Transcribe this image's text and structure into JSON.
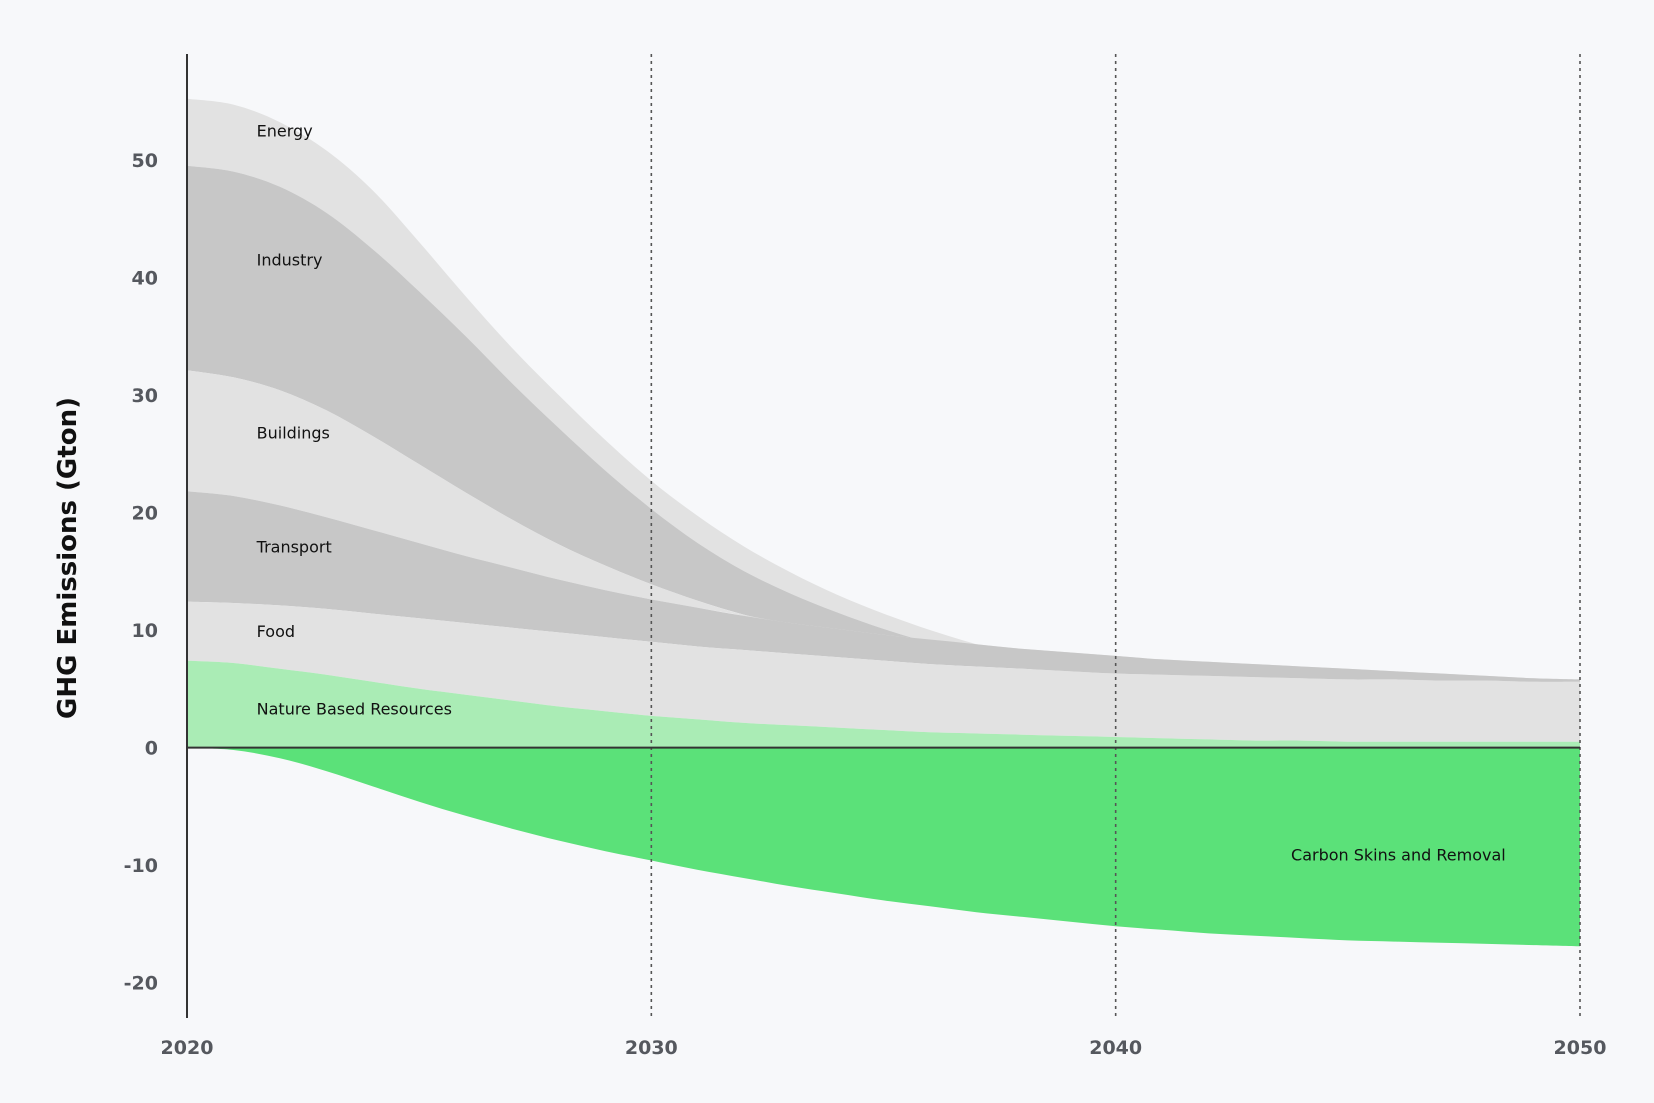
{
  "chart_data": {
    "type": "area",
    "ylabel": "GHG Emissions (Gton)",
    "xlabel": "",
    "title": "",
    "x_ticks": [
      2020,
      2030,
      2040,
      2050
    ],
    "y_ticks": [
      -20,
      -10,
      0,
      10,
      20,
      30,
      40,
      50
    ],
    "xlim": [
      2020,
      2050
    ],
    "ylim": [
      -23,
      59
    ],
    "grid": "vertical dotted lines at 2030, 2040, 2050",
    "x": [
      2020,
      2021,
      2022,
      2023,
      2024,
      2025,
      2026,
      2027,
      2028,
      2029,
      2030,
      2031,
      2032,
      2033,
      2034,
      2035,
      2036,
      2037,
      2038,
      2039,
      2040,
      2041,
      2042,
      2043,
      2044,
      2045,
      2046,
      2047,
      2048,
      2049,
      2050
    ],
    "series": [
      {
        "name": "Energy",
        "color": "#e2e2e2",
        "bounds": [
          [
            49.5,
            55.2
          ],
          [
            49.0,
            54.7
          ],
          [
            47.7,
            53.2
          ],
          [
            45.5,
            50.8
          ],
          [
            42.4,
            47.4
          ],
          [
            38.8,
            43.0
          ],
          [
            35.0,
            38.4
          ],
          [
            31.0,
            34.0
          ],
          [
            27.2,
            30.0
          ],
          [
            23.6,
            26.2
          ],
          [
            20.3,
            22.7
          ],
          [
            17.4,
            19.7
          ],
          [
            15.0,
            17.1
          ],
          [
            13.1,
            14.9
          ],
          [
            11.5,
            13.0
          ],
          [
            10.1,
            11.4
          ],
          [
            8.9,
            10.0
          ],
          [
            7.8,
            8.8
          ],
          [
            6.9,
            7.8
          ],
          [
            6.1,
            6.9
          ],
          [
            5.4,
            6.1
          ],
          [
            4.8,
            5.4
          ],
          [
            4.2,
            4.7
          ],
          [
            3.7,
            4.1
          ],
          [
            3.2,
            3.5
          ],
          [
            2.7,
            3.0
          ],
          [
            2.2,
            2.5
          ],
          [
            1.8,
            2.0
          ],
          [
            1.4,
            1.6
          ],
          [
            1.0,
            1.2
          ],
          [
            0.6,
            0.7
          ]
        ]
      },
      {
        "name": "Industry",
        "color": "#c7c7c7",
        "bounds": [
          [
            32.1,
            49.5
          ],
          [
            31.5,
            49.0
          ],
          [
            30.4,
            47.7
          ],
          [
            28.7,
            45.5
          ],
          [
            26.5,
            42.4
          ],
          [
            24.1,
            38.8
          ],
          [
            21.7,
            35.0
          ],
          [
            19.4,
            31.0
          ],
          [
            17.3,
            27.2
          ],
          [
            15.5,
            23.6
          ],
          [
            13.9,
            20.3
          ],
          [
            12.5,
            17.4
          ],
          [
            11.3,
            15.0
          ],
          [
            10.3,
            13.1
          ],
          [
            9.4,
            11.5
          ],
          [
            8.6,
            10.1
          ],
          [
            7.9,
            8.9
          ],
          [
            7.3,
            7.8
          ],
          [
            6.8,
            6.9
          ],
          [
            6.3,
            6.1
          ],
          [
            5.9,
            5.4
          ],
          [
            5.5,
            4.8
          ],
          [
            5.2,
            4.2
          ],
          [
            4.9,
            3.7
          ],
          [
            4.6,
            3.2
          ],
          [
            4.3,
            2.7
          ],
          [
            4.0,
            2.2
          ],
          [
            3.7,
            1.8
          ],
          [
            3.4,
            1.4
          ],
          [
            3.2,
            1.0
          ],
          [
            3.0,
            0.6
          ]
        ]
      },
      {
        "name": "Buildings",
        "color": "#e2e2e2",
        "bounds": [
          [
            21.8,
            32.1
          ],
          [
            21.4,
            31.5
          ],
          [
            20.6,
            30.4
          ],
          [
            19.6,
            28.7
          ],
          [
            18.5,
            26.5
          ],
          [
            17.4,
            24.1
          ],
          [
            16.3,
            21.7
          ],
          [
            15.3,
            19.4
          ],
          [
            14.3,
            17.3
          ],
          [
            13.4,
            15.5
          ],
          [
            12.6,
            13.9
          ],
          [
            11.9,
            12.5
          ],
          [
            11.2,
            11.3
          ],
          [
            10.6,
            10.3
          ],
          [
            10.1,
            9.4
          ],
          [
            9.6,
            8.6
          ],
          [
            9.2,
            7.9
          ],
          [
            8.8,
            7.3
          ],
          [
            8.4,
            6.8
          ],
          [
            8.1,
            6.3
          ],
          [
            7.8,
            5.9
          ],
          [
            7.5,
            5.5
          ],
          [
            7.3,
            5.2
          ],
          [
            7.1,
            4.9
          ],
          [
            6.9,
            4.6
          ],
          [
            6.7,
            4.3
          ],
          [
            6.5,
            4.0
          ],
          [
            6.3,
            3.7
          ],
          [
            6.1,
            3.4
          ],
          [
            5.9,
            3.2
          ],
          [
            5.8,
            3.0
          ]
        ]
      },
      {
        "name": "Transport",
        "color": "#c7c7c7",
        "bounds": [
          [
            12.4,
            21.8
          ],
          [
            12.3,
            21.4
          ],
          [
            12.1,
            20.6
          ],
          [
            11.8,
            19.6
          ],
          [
            11.4,
            18.5
          ],
          [
            11.0,
            17.4
          ],
          [
            10.6,
            16.3
          ],
          [
            10.2,
            15.3
          ],
          [
            9.8,
            14.3
          ],
          [
            9.4,
            13.4
          ],
          [
            9.0,
            12.6
          ],
          [
            8.6,
            11.9
          ],
          [
            8.3,
            11.2
          ],
          [
            8.0,
            10.6
          ],
          [
            7.7,
            10.1
          ],
          [
            7.4,
            9.6
          ],
          [
            7.1,
            9.2
          ],
          [
            6.9,
            8.8
          ],
          [
            6.7,
            8.4
          ],
          [
            6.5,
            8.1
          ],
          [
            6.3,
            7.8
          ],
          [
            6.2,
            7.5
          ],
          [
            6.1,
            7.3
          ],
          [
            6.0,
            7.1
          ],
          [
            5.9,
            6.9
          ],
          [
            5.8,
            6.7
          ],
          [
            5.8,
            6.5
          ],
          [
            5.7,
            6.3
          ],
          [
            5.7,
            6.1
          ],
          [
            5.6,
            5.9
          ],
          [
            5.6,
            5.8
          ]
        ]
      },
      {
        "name": "Food",
        "color": "#e2e2e2",
        "bounds": [
          [
            7.4,
            12.4
          ],
          [
            7.2,
            12.3
          ],
          [
            6.7,
            12.1
          ],
          [
            6.2,
            11.8
          ],
          [
            5.6,
            11.4
          ],
          [
            5.0,
            11.0
          ],
          [
            4.5,
            10.6
          ],
          [
            4.0,
            10.2
          ],
          [
            3.5,
            9.8
          ],
          [
            3.1,
            9.4
          ],
          [
            2.7,
            9.0
          ],
          [
            2.4,
            8.6
          ],
          [
            2.1,
            8.3
          ],
          [
            1.9,
            8.0
          ],
          [
            1.7,
            7.7
          ],
          [
            1.5,
            7.4
          ],
          [
            1.3,
            7.1
          ],
          [
            1.2,
            6.9
          ],
          [
            1.1,
            6.7
          ],
          [
            1.0,
            6.5
          ],
          [
            0.9,
            6.3
          ],
          [
            0.8,
            6.2
          ],
          [
            0.7,
            6.1
          ],
          [
            0.6,
            6.0
          ],
          [
            0.6,
            5.9
          ],
          [
            0.5,
            5.8
          ],
          [
            0.5,
            5.8
          ],
          [
            0.5,
            5.7
          ],
          [
            0.5,
            5.7
          ],
          [
            0.5,
            5.6
          ],
          [
            0.5,
            5.6
          ]
        ]
      },
      {
        "name": "Nature Based Resources",
        "color": "#aaecb5",
        "bounds": [
          [
            0,
            7.4
          ],
          [
            0,
            7.2
          ],
          [
            0,
            6.7
          ],
          [
            0,
            6.2
          ],
          [
            0,
            5.6
          ],
          [
            0,
            5.0
          ],
          [
            0,
            4.5
          ],
          [
            0,
            4.0
          ],
          [
            0,
            3.5
          ],
          [
            0,
            3.1
          ],
          [
            0,
            2.7
          ],
          [
            0,
            2.4
          ],
          [
            0,
            2.1
          ],
          [
            0,
            1.9
          ],
          [
            0,
            1.7
          ],
          [
            0,
            1.5
          ],
          [
            0,
            1.3
          ],
          [
            0,
            1.2
          ],
          [
            0,
            1.1
          ],
          [
            0,
            1.0
          ],
          [
            0,
            0.9
          ],
          [
            0,
            0.8
          ],
          [
            0,
            0.7
          ],
          [
            0,
            0.6
          ],
          [
            0,
            0.6
          ],
          [
            0,
            0.5
          ],
          [
            0,
            0.5
          ],
          [
            0,
            0.5
          ],
          [
            0,
            0.5
          ],
          [
            0,
            0.5
          ],
          [
            0,
            0.5
          ]
        ]
      },
      {
        "name": "Carbon Skins and Removal",
        "color": "#5be179",
        "bounds": [
          [
            0,
            0
          ],
          [
            -0.2,
            0
          ],
          [
            -0.9,
            0
          ],
          [
            -2.0,
            0
          ],
          [
            -3.3,
            0
          ],
          [
            -4.6,
            0
          ],
          [
            -5.8,
            0
          ],
          [
            -6.9,
            0
          ],
          [
            -7.9,
            0
          ],
          [
            -8.8,
            0
          ],
          [
            -9.6,
            0
          ],
          [
            -10.4,
            0
          ],
          [
            -11.1,
            0
          ],
          [
            -11.8,
            0
          ],
          [
            -12.4,
            0
          ],
          [
            -13.0,
            0
          ],
          [
            -13.5,
            0
          ],
          [
            -14.0,
            0
          ],
          [
            -14.4,
            0
          ],
          [
            -14.8,
            0
          ],
          [
            -15.2,
            0
          ],
          [
            -15.5,
            0
          ],
          [
            -15.8,
            0
          ],
          [
            -16.0,
            0
          ],
          [
            -16.2,
            0
          ],
          [
            -16.4,
            0
          ],
          [
            -16.5,
            0
          ],
          [
            -16.6,
            0
          ],
          [
            -16.7,
            0
          ],
          [
            -16.8,
            0
          ],
          [
            -16.9,
            0
          ]
        ]
      }
    ]
  }
}
